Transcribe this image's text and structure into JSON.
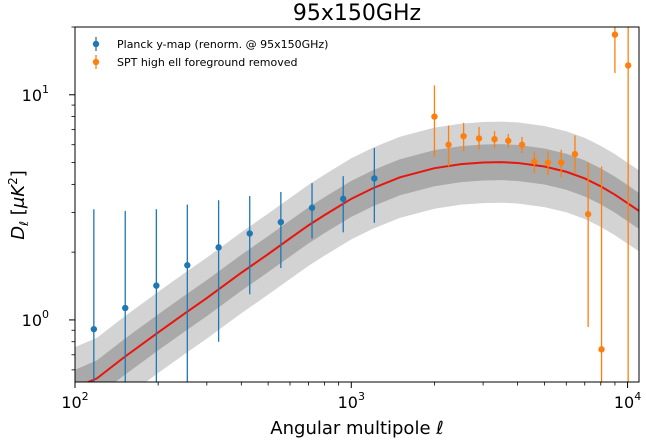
{
  "chart_data": {
    "type": "scatter",
    "title": "95x150GHz",
    "xlabel": "Angular multipole ℓ",
    "ylabel": "Dℓ [μK²]",
    "xscale": "log",
    "yscale": "log",
    "xlim": [
      100,
      11000
    ],
    "ylim": [
      0.53,
      20
    ],
    "x_ticks": [
      {
        "value": 100,
        "base": "10",
        "exp": "2"
      },
      {
        "value": 1000,
        "base": "10",
        "exp": "3"
      },
      {
        "value": 10000,
        "base": "10",
        "exp": "4"
      }
    ],
    "y_ticks": [
      {
        "value": 1,
        "base": "10",
        "exp": "0"
      },
      {
        "value": 10,
        "base": "10",
        "exp": "1"
      }
    ],
    "legend_position": "top-left",
    "grid": false,
    "series": [
      {
        "name": "Planck y-map (renorm. @ 95x150GHz)",
        "color": "#1f77b4",
        "points": [
          {
            "x": 117,
            "y": 0.91,
            "lo": 0.53,
            "hi": 3.1
          },
          {
            "x": 152,
            "y": 1.13,
            "lo": 0.53,
            "hi": 3.05
          },
          {
            "x": 197,
            "y": 1.42,
            "lo": 0.53,
            "hi": 3.1
          },
          {
            "x": 255,
            "y": 1.75,
            "lo": 0.53,
            "hi": 3.25
          },
          {
            "x": 331,
            "y": 2.1,
            "lo": 0.8,
            "hi": 3.4
          },
          {
            "x": 429,
            "y": 2.42,
            "lo": 1.3,
            "hi": 3.55
          },
          {
            "x": 556,
            "y": 2.72,
            "lo": 1.7,
            "hi": 3.7
          },
          {
            "x": 721,
            "y": 3.15,
            "lo": 2.3,
            "hi": 4.05
          },
          {
            "x": 935,
            "y": 3.45,
            "lo": 2.45,
            "hi": 4.35
          },
          {
            "x": 1212,
            "y": 4.25,
            "lo": 2.7,
            "hi": 5.8
          }
        ]
      },
      {
        "name": "SPT high ell foreground removed",
        "color": "#ff7f0e",
        "points": [
          {
            "x": 2000,
            "y": 8.0,
            "lo": 5.3,
            "hi": 11.0
          },
          {
            "x": 2250,
            "y": 6.0,
            "lo": 4.8,
            "hi": 7.3
          },
          {
            "x": 2550,
            "y": 6.55,
            "lo": 5.6,
            "hi": 7.5
          },
          {
            "x": 2900,
            "y": 6.4,
            "lo": 5.7,
            "hi": 7.2
          },
          {
            "x": 3300,
            "y": 6.35,
            "lo": 5.8,
            "hi": 6.9
          },
          {
            "x": 3700,
            "y": 6.25,
            "lo": 5.8,
            "hi": 6.7
          },
          {
            "x": 4150,
            "y": 6.0,
            "lo": 5.5,
            "hi": 6.5
          },
          {
            "x": 4600,
            "y": 5.05,
            "lo": 4.5,
            "hi": 5.6
          },
          {
            "x": 5150,
            "y": 5.0,
            "lo": 4.4,
            "hi": 5.6
          },
          {
            "x": 5750,
            "y": 5.0,
            "lo": 4.3,
            "hi": 5.7
          },
          {
            "x": 6450,
            "y": 5.45,
            "lo": 4.5,
            "hi": 6.6
          },
          {
            "x": 7200,
            "y": 2.95,
            "lo": 0.93,
            "hi": 5.0
          },
          {
            "x": 8050,
            "y": 0.74,
            "lo": 0.53,
            "hi": 4.8
          },
          {
            "x": 9000,
            "y": 18.5,
            "lo": 12.5,
            "hi": 20
          },
          {
            "x": 10050,
            "y": 13.5,
            "lo": 0.53,
            "hi": 20
          }
        ]
      }
    ],
    "model": {
      "color": "#e8150c",
      "band_1sigma_color": "#a9a9a9",
      "band_2sigma_color": "#d3d3d3",
      "curve": [
        {
          "x": 100,
          "y": 0.5
        },
        {
          "x": 120,
          "y": 0.55
        },
        {
          "x": 150,
          "y": 0.68
        },
        {
          "x": 200,
          "y": 0.88
        },
        {
          "x": 250,
          "y": 1.07
        },
        {
          "x": 300,
          "y": 1.25
        },
        {
          "x": 400,
          "y": 1.62
        },
        {
          "x": 500,
          "y": 1.96
        },
        {
          "x": 600,
          "y": 2.3
        },
        {
          "x": 700,
          "y": 2.63
        },
        {
          "x": 800,
          "y": 2.92
        },
        {
          "x": 1000,
          "y": 3.45
        },
        {
          "x": 1200,
          "y": 3.85
        },
        {
          "x": 1500,
          "y": 4.3
        },
        {
          "x": 2000,
          "y": 4.72
        },
        {
          "x": 2500,
          "y": 4.92
        },
        {
          "x": 3000,
          "y": 5.0
        },
        {
          "x": 3500,
          "y": 5.02
        },
        {
          "x": 4000,
          "y": 4.98
        },
        {
          "x": 5000,
          "y": 4.8
        },
        {
          "x": 6000,
          "y": 4.55
        },
        {
          "x": 7000,
          "y": 4.25
        },
        {
          "x": 8000,
          "y": 3.92
        },
        {
          "x": 9000,
          "y": 3.6
        },
        {
          "x": 10000,
          "y": 3.3
        },
        {
          "x": 11000,
          "y": 3.05
        }
      ],
      "band_1sigma_frac": 0.08,
      "band_2sigma_frac": 0.18
    }
  }
}
